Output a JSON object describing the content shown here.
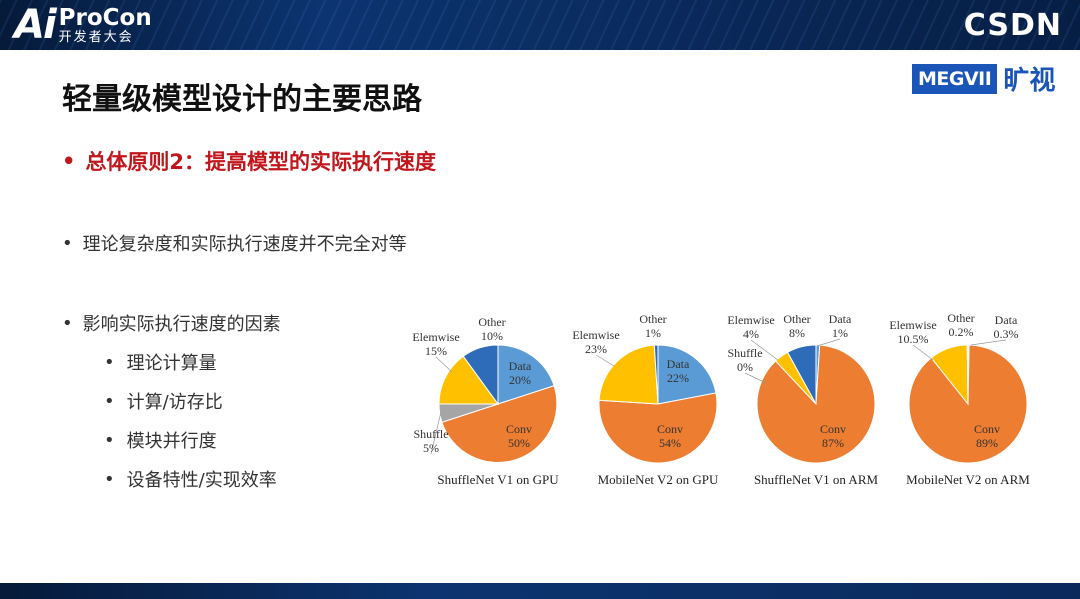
{
  "header": {
    "logo_mark": "Ai",
    "logo_name": "ProCon",
    "logo_sub": "开发者大会",
    "logo_right": "CSDN"
  },
  "brand": {
    "megvii": "MEGVII",
    "megvii_cn": "旷视"
  },
  "slide": {
    "title": "轻量级模型设计的主要思路",
    "principle": "总体原则2：提高模型的实际执行速度",
    "point1": "理论复杂度和实际执行速度并不完全对等",
    "point2": "影响实际执行速度的因素",
    "factors": [
      "理论计算量",
      "计算/访存比",
      "模块并行度",
      "设备特性/实现效率"
    ]
  },
  "colors": {
    "Data": "#5b9bd5",
    "Conv": "#ed7d31",
    "Shuffle": "#a5a5a5",
    "Elemwise": "#ffc000",
    "Other": "#2e6bb8"
  },
  "chart_data": [
    {
      "type": "pie",
      "title": "ShuffleNet V1 on GPU",
      "slices": [
        {
          "name": "Data",
          "value": 20,
          "label": "20%"
        },
        {
          "name": "Conv",
          "value": 50,
          "label": "50%"
        },
        {
          "name": "Shuffle",
          "value": 5,
          "label": "5%"
        },
        {
          "name": "Elemwise",
          "value": 15,
          "label": "15%"
        },
        {
          "name": "Other",
          "value": 10,
          "label": "10%"
        }
      ]
    },
    {
      "type": "pie",
      "title": "MobileNet V2 on GPU",
      "slices": [
        {
          "name": "Data",
          "value": 22,
          "label": "22%"
        },
        {
          "name": "Conv",
          "value": 54,
          "label": "54%"
        },
        {
          "name": "Elemwise",
          "value": 23,
          "label": "23%"
        },
        {
          "name": "Other",
          "value": 1,
          "label": "1%"
        }
      ]
    },
    {
      "type": "pie",
      "title": "ShuffleNet V1 on ARM",
      "slices": [
        {
          "name": "Data",
          "value": 1,
          "label": "1%"
        },
        {
          "name": "Conv",
          "value": 87,
          "label": "87%"
        },
        {
          "name": "Shuffle",
          "value": 0,
          "label": "0%"
        },
        {
          "name": "Elemwise",
          "value": 4,
          "label": "4%"
        },
        {
          "name": "Other",
          "value": 8,
          "label": "8%"
        }
      ]
    },
    {
      "type": "pie",
      "title": "MobileNet V2 on ARM",
      "slices": [
        {
          "name": "Data",
          "value": 0.3,
          "label": "0.3%"
        },
        {
          "name": "Conv",
          "value": 89,
          "label": "89%"
        },
        {
          "name": "Elemwise",
          "value": 10.5,
          "label": "10.5%"
        },
        {
          "name": "Other",
          "value": 0.2,
          "label": "0.2%"
        }
      ]
    }
  ]
}
